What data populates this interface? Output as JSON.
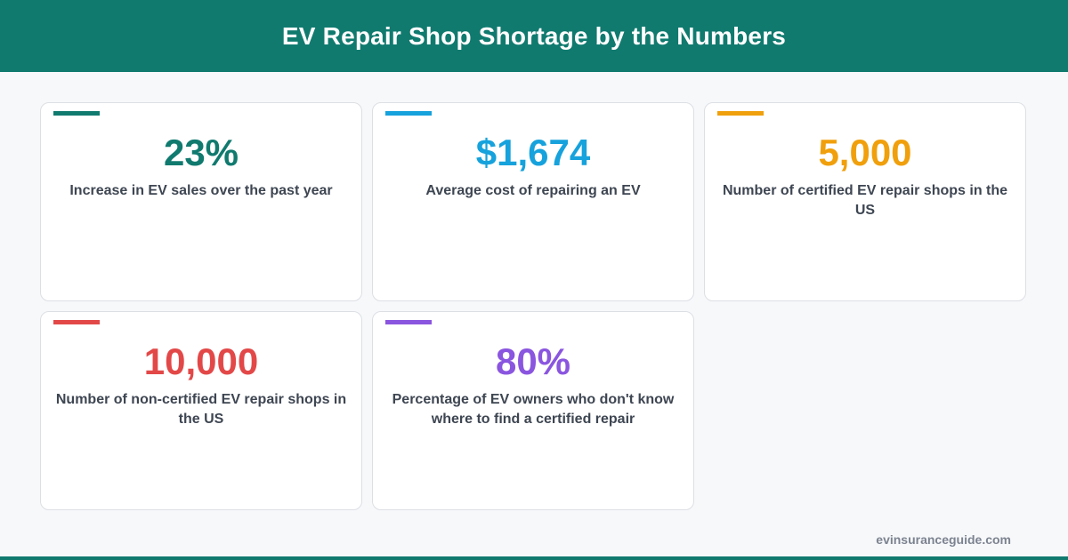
{
  "header": {
    "title": "EV Repair Shop Shortage by the Numbers"
  },
  "colors": {
    "header_bg": "#107a6f",
    "teal": "#107a6f",
    "blue": "#16a2dc",
    "orange": "#f0a00c",
    "red": "#e34848",
    "purple": "#8a55df"
  },
  "stats": [
    {
      "value": "23%",
      "label": "Increase in EV sales over the past year",
      "color": "#107a6f"
    },
    {
      "value": "$1,674",
      "label": "Average cost of repairing an EV",
      "color": "#16a2dc"
    },
    {
      "value": "5,000",
      "label": "Number of certified EV repair shops in the US",
      "color": "#f0a00c"
    },
    {
      "value": "10,000",
      "label": "Number of non-certified EV repair shops in the US",
      "color": "#e34848"
    },
    {
      "value": "80%",
      "label": "Percentage of EV owners who don't know where to find a certified repair",
      "color": "#8a55df"
    }
  ],
  "footer": {
    "site": "evinsuranceguide.com"
  }
}
